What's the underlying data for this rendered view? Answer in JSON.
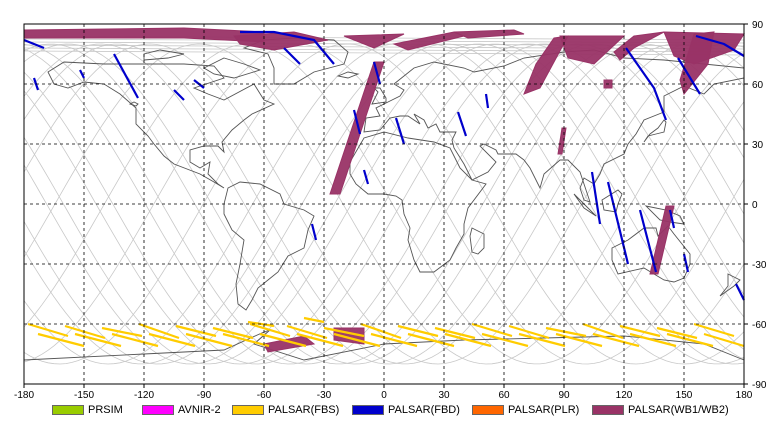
{
  "map": {
    "lon_ticks": [
      -180,
      -150,
      -120,
      -90,
      -60,
      -30,
      0,
      30,
      60,
      90,
      120,
      150,
      180
    ],
    "lat_ticks": [
      90,
      60,
      30,
      0,
      -30,
      -60,
      -90
    ],
    "lon_range": [
      -180,
      180
    ],
    "lat_range": [
      -90,
      90
    ],
    "grid": "dashed"
  },
  "legend": [
    {
      "label": "PRSIM",
      "color": "#99cc00"
    },
    {
      "label": "AVNIR-2",
      "color": "#ff00ff"
    },
    {
      "label": "PALSAR(FBS)",
      "color": "#ffcc00"
    },
    {
      "label": "PALSAR(FBD)",
      "color": "#0000cc"
    },
    {
      "label": "PALSAR(PLR)",
      "color": "#ff6600"
    },
    {
      "label": "PALSAR(WB1/WB2)",
      "color": "#993366"
    }
  ]
}
